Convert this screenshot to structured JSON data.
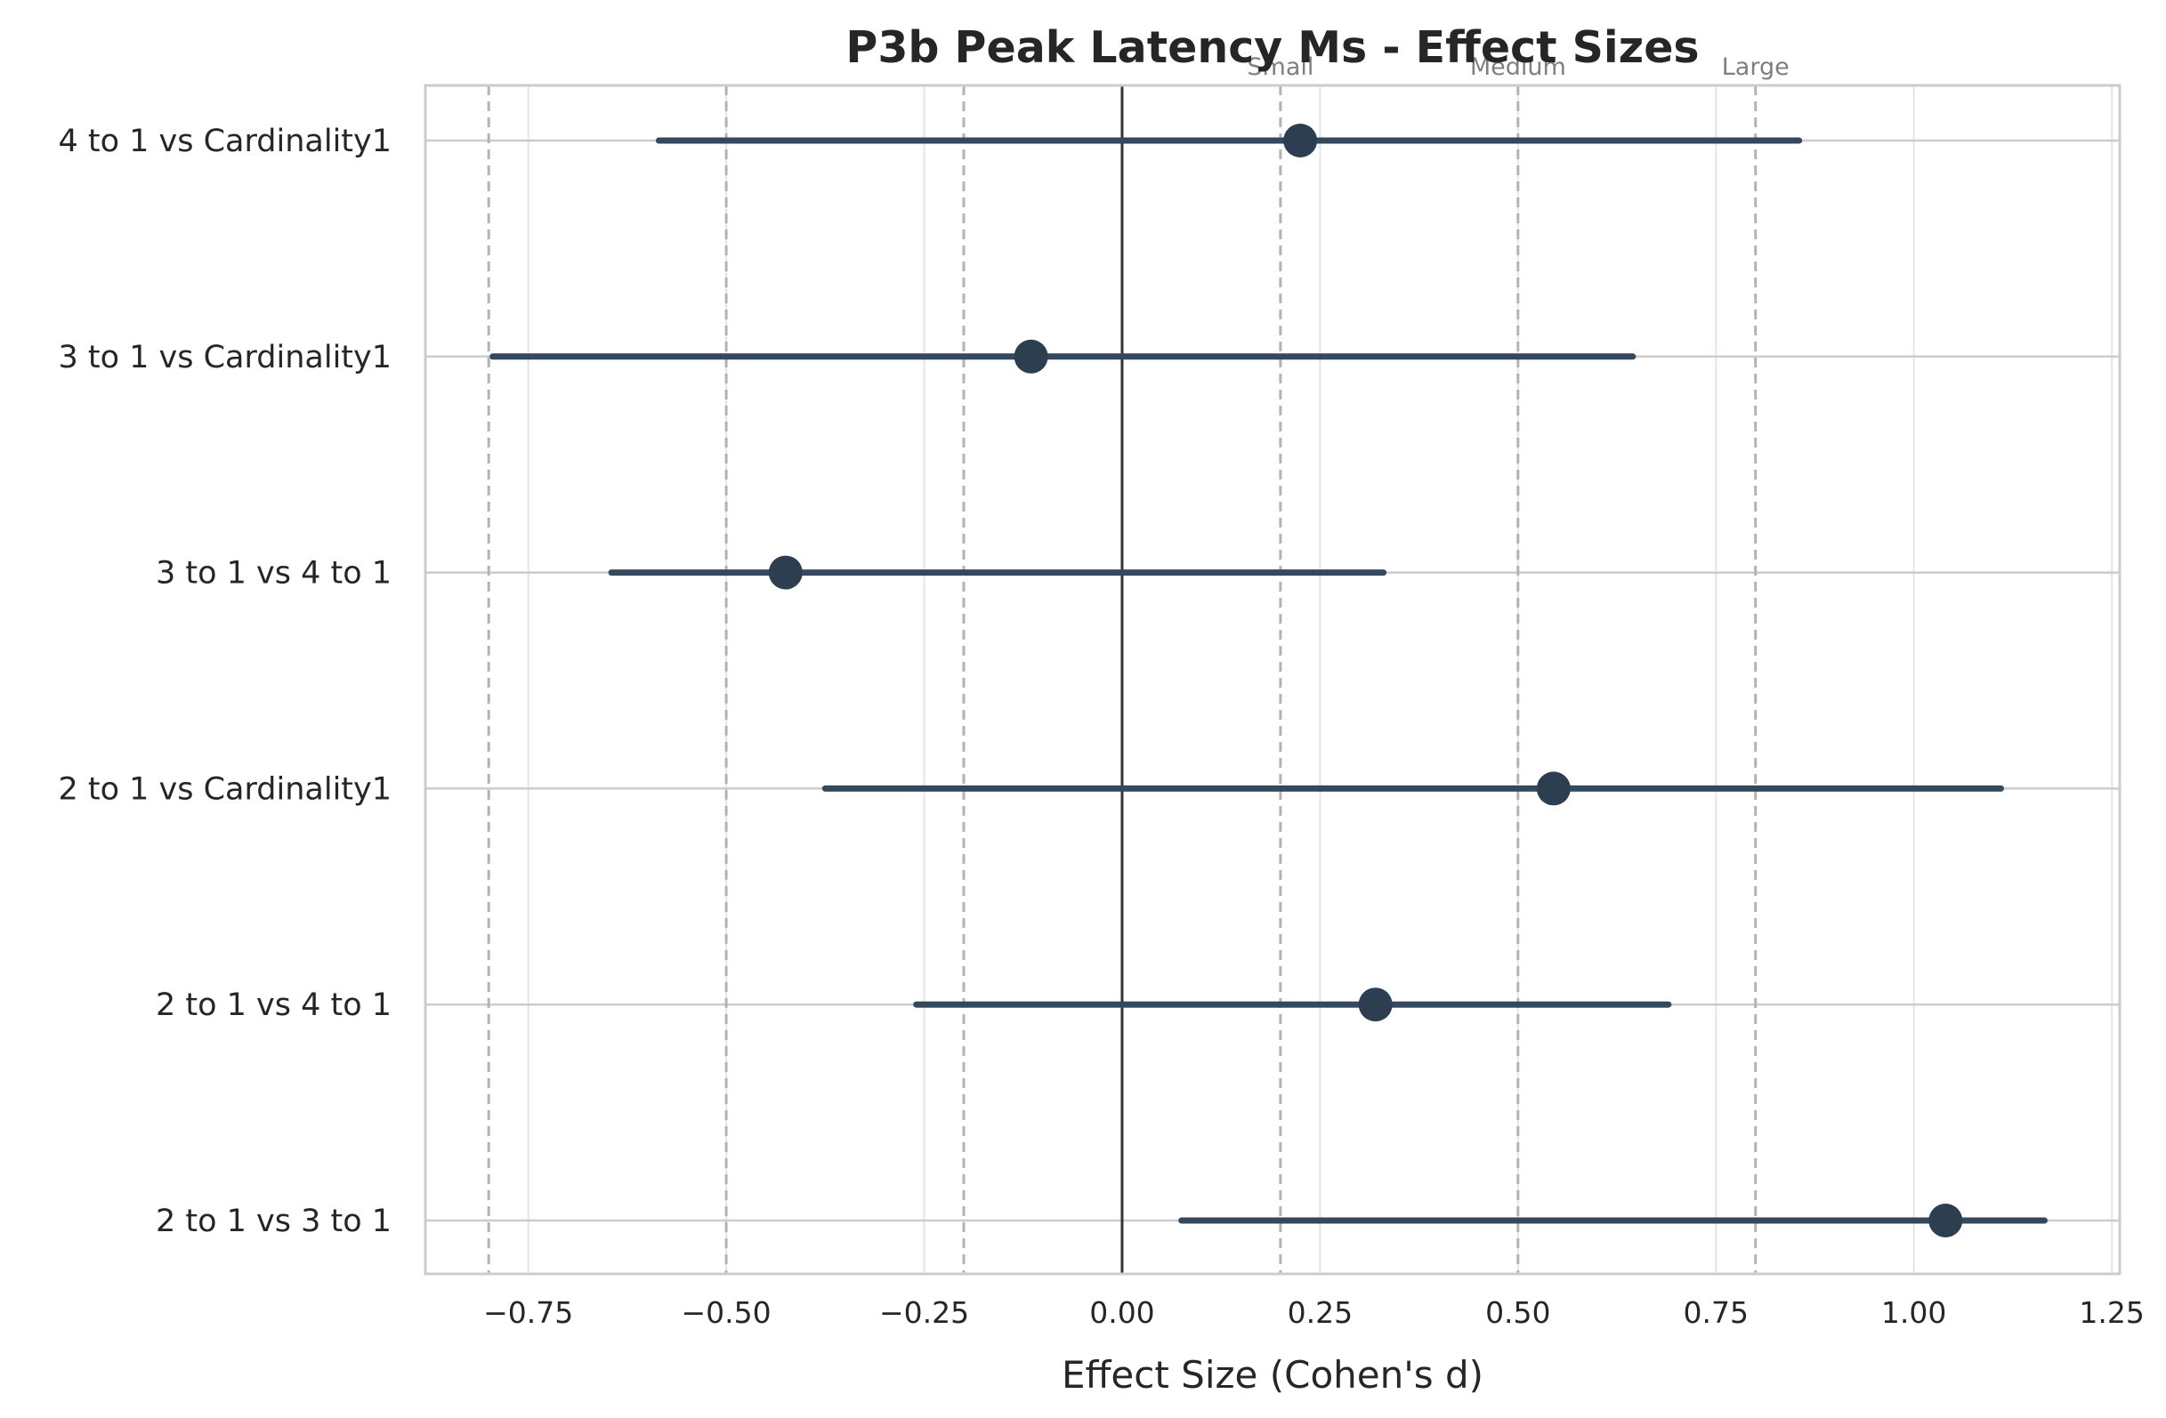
{
  "chart_data": {
    "type": "forest",
    "title": "P3b Peak Latency Ms - Effect Sizes",
    "xlabel": "Effect Size (Cohen's d)",
    "ylabel": "",
    "xlim": [
      -0.88,
      1.26
    ],
    "xticks": [
      -0.75,
      -0.5,
      -0.25,
      0.0,
      0.25,
      0.5,
      0.75,
      1.0,
      1.25
    ],
    "xtick_labels": [
      "−0.75",
      "−0.50",
      "−0.25",
      "0.00",
      "0.25",
      "0.50",
      "0.75",
      "1.00",
      "1.25"
    ],
    "grid": true,
    "zero_line": 0.0,
    "reference_lines": [
      {
        "value": -0.8,
        "label": ""
      },
      {
        "value": -0.5,
        "label": ""
      },
      {
        "value": -0.2,
        "label": ""
      },
      {
        "value": 0.2,
        "label": "Small"
      },
      {
        "value": 0.5,
        "label": "Medium"
      },
      {
        "value": 0.8,
        "label": "Large"
      }
    ],
    "comparisons": [
      {
        "label": "4 to 1 vs Cardinality1",
        "d": 0.225,
        "ci_low": -0.585,
        "ci_high": 0.855
      },
      {
        "label": "3 to 1 vs Cardinality1",
        "d": -0.115,
        "ci_low": -0.795,
        "ci_high": 0.645
      },
      {
        "label": "3 to 1 vs 4 to 1",
        "d": -0.425,
        "ci_low": -0.645,
        "ci_high": 0.33
      },
      {
        "label": "2 to 1 vs Cardinality1",
        "d": 0.545,
        "ci_low": -0.375,
        "ci_high": 1.11
      },
      {
        "label": "2 to 1 vs 4 to 1",
        "d": 0.32,
        "ci_low": -0.26,
        "ci_high": 0.69
      },
      {
        "label": "2 to 1 vs 3 to 1",
        "d": 1.04,
        "ci_low": 0.075,
        "ci_high": 1.165
      }
    ],
    "colors": {
      "line": "#34495e",
      "point": "#2c3e50",
      "zero": "#333333",
      "ref": "#b3b3b3",
      "grid": "#e5e5e5",
      "grid_h": "#cccccc",
      "frame": "#cccccc"
    }
  }
}
